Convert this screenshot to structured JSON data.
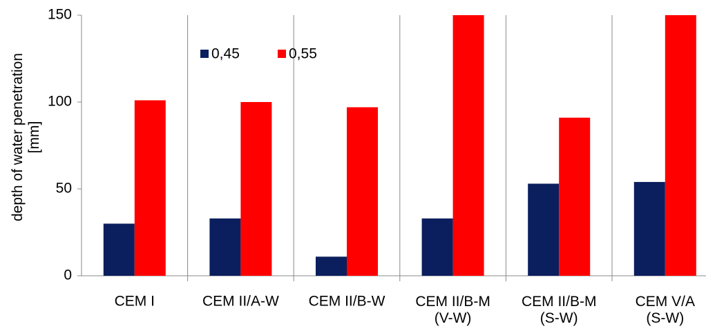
{
  "chart_data": {
    "type": "bar",
    "y_label": "depth of water penetration\n[mm]",
    "categories": [
      "CEM I",
      "CEM II/A-W",
      "CEM II/B-W",
      "CEM II/B-M\n(V-W)",
      "CEM II/B-M\n(S-W)",
      "CEM V/A\n(S-W)"
    ],
    "series": [
      {
        "name": "0,45",
        "color": "#0b1f5e",
        "values": [
          30,
          33,
          11,
          33,
          53,
          54
        ]
      },
      {
        "name": "0,55",
        "color": "#ff0000",
        "values": [
          101,
          100,
          97,
          150,
          91,
          150
        ]
      }
    ],
    "ylim": [
      0,
      150
    ],
    "yticks": [
      0,
      50,
      100,
      150
    ],
    "grid": false
  }
}
